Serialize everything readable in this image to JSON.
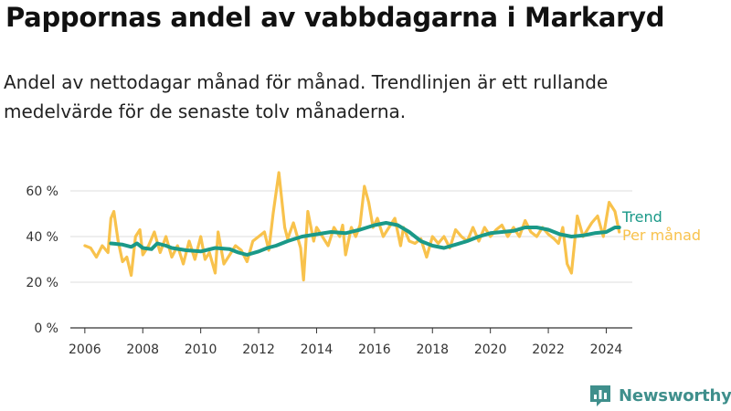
{
  "header": {
    "title": "Pappornas andel av vabbdagarna i Markaryd",
    "subtitle": "Andel av nettodagar månad för månad. Trendlinjen är ett rullande medelvärde för de senaste tolv månaderna."
  },
  "brand": {
    "name": "Newsworthy",
    "icon": "newsworthy-logo-icon"
  },
  "colors": {
    "trend": "#1a9988",
    "monthly": "#f8c24c",
    "grid": "#dddddd",
    "axis": "#333333",
    "brand": "#3f8f8c"
  },
  "chart_data": {
    "type": "line",
    "xlim": [
      2005.5,
      2024.9
    ],
    "ylim": [
      0,
      70
    ],
    "x_ticks": [
      2006,
      2008,
      2010,
      2012,
      2014,
      2016,
      2018,
      2020,
      2022,
      2024
    ],
    "x_tick_labels": [
      "2006",
      "2008",
      "2010",
      "2012",
      "2014",
      "2016",
      "2018",
      "2020",
      "2022",
      "2024"
    ],
    "y_ticks": [
      0,
      20,
      40,
      60
    ],
    "y_tick_labels": [
      "0 %",
      "20 %",
      "40 %",
      "60 %"
    ],
    "grid": true,
    "legend_placement": "right-end",
    "series": [
      {
        "name": "Per månad",
        "color": "#f8c24c",
        "x": [
          2006.0,
          2006.2,
          2006.4,
          2006.6,
          2006.8,
          2006.9,
          2007.0,
          2007.15,
          2007.3,
          2007.45,
          2007.6,
          2007.75,
          2007.9,
          2008.0,
          2008.2,
          2008.4,
          2008.6,
          2008.8,
          2009.0,
          2009.2,
          2009.4,
          2009.6,
          2009.8,
          2010.0,
          2010.15,
          2010.3,
          2010.5,
          2010.6,
          2010.8,
          2011.0,
          2011.2,
          2011.4,
          2011.6,
          2011.8,
          2012.0,
          2012.2,
          2012.35,
          2012.5,
          2012.7,
          2012.9,
          2013.0,
          2013.2,
          2013.45,
          2013.55,
          2013.7,
          2013.9,
          2014.0,
          2014.2,
          2014.4,
          2014.6,
          2014.8,
          2014.9,
          2015.0,
          2015.2,
          2015.35,
          2015.5,
          2015.65,
          2015.8,
          2015.95,
          2016.1,
          2016.3,
          2016.5,
          2016.7,
          2016.9,
          2017.0,
          2017.2,
          2017.4,
          2017.6,
          2017.8,
          2018.0,
          2018.2,
          2018.4,
          2018.6,
          2018.8,
          2019.0,
          2019.2,
          2019.4,
          2019.6,
          2019.8,
          2020.0,
          2020.2,
          2020.4,
          2020.6,
          2020.8,
          2021.0,
          2021.2,
          2021.4,
          2021.6,
          2021.8,
          2022.0,
          2022.2,
          2022.35,
          2022.5,
          2022.65,
          2022.8,
          2023.0,
          2023.2,
          2023.35,
          2023.5,
          2023.7,
          2023.9,
          2024.1,
          2024.3,
          2024.45
        ],
        "values": [
          36,
          35,
          31,
          36,
          33,
          48,
          51,
          38,
          29,
          31,
          23,
          40,
          43,
          32,
          36,
          42,
          33,
          40,
          31,
          36,
          28,
          38,
          30,
          40,
          30,
          33,
          24,
          42,
          28,
          32,
          36,
          34,
          29,
          38,
          40,
          42,
          34,
          50,
          68,
          44,
          39,
          46,
          35,
          21,
          51,
          38,
          44,
          40,
          36,
          44,
          40,
          45,
          32,
          44,
          40,
          45,
          62,
          55,
          44,
          48,
          40,
          44,
          48,
          36,
          44,
          38,
          37,
          39,
          31,
          40,
          37,
          40,
          35,
          43,
          40,
          38,
          44,
          38,
          44,
          40,
          43,
          45,
          40,
          44,
          40,
          47,
          42,
          40,
          44,
          41,
          39,
          37,
          44,
          28,
          24,
          49,
          40,
          43,
          46,
          49,
          40,
          55,
          51,
          42
        ]
      },
      {
        "name": "Trend",
        "color": "#1a9988",
        "x": [
          2006.9,
          2007.3,
          2007.6,
          2007.8,
          2008.0,
          2008.3,
          2008.5,
          2008.8,
          2009.0,
          2009.5,
          2010.0,
          2010.5,
          2011.0,
          2011.3,
          2011.6,
          2012.0,
          2012.3,
          2012.6,
          2013.0,
          2013.5,
          2014.0,
          2014.5,
          2015.0,
          2015.5,
          2016.0,
          2016.4,
          2016.8,
          2017.2,
          2017.6,
          2018.0,
          2018.4,
          2018.8,
          2019.2,
          2019.6,
          2020.0,
          2020.4,
          2020.8,
          2021.2,
          2021.6,
          2022.0,
          2022.4,
          2022.8,
          2023.2,
          2023.6,
          2024.0,
          2024.3,
          2024.45
        ],
        "values": [
          37,
          36.5,
          35.5,
          37,
          35,
          34.5,
          37,
          36,
          35,
          34,
          33.5,
          35,
          34.5,
          33,
          32,
          33.5,
          35,
          36,
          38,
          40,
          41,
          42,
          41.5,
          43,
          45,
          46,
          45,
          42,
          38,
          36,
          35,
          36.5,
          38,
          40,
          41.5,
          42,
          42.5,
          44,
          44,
          43,
          41,
          40,
          40.5,
          41.5,
          42,
          44,
          44
        ]
      }
    ]
  }
}
